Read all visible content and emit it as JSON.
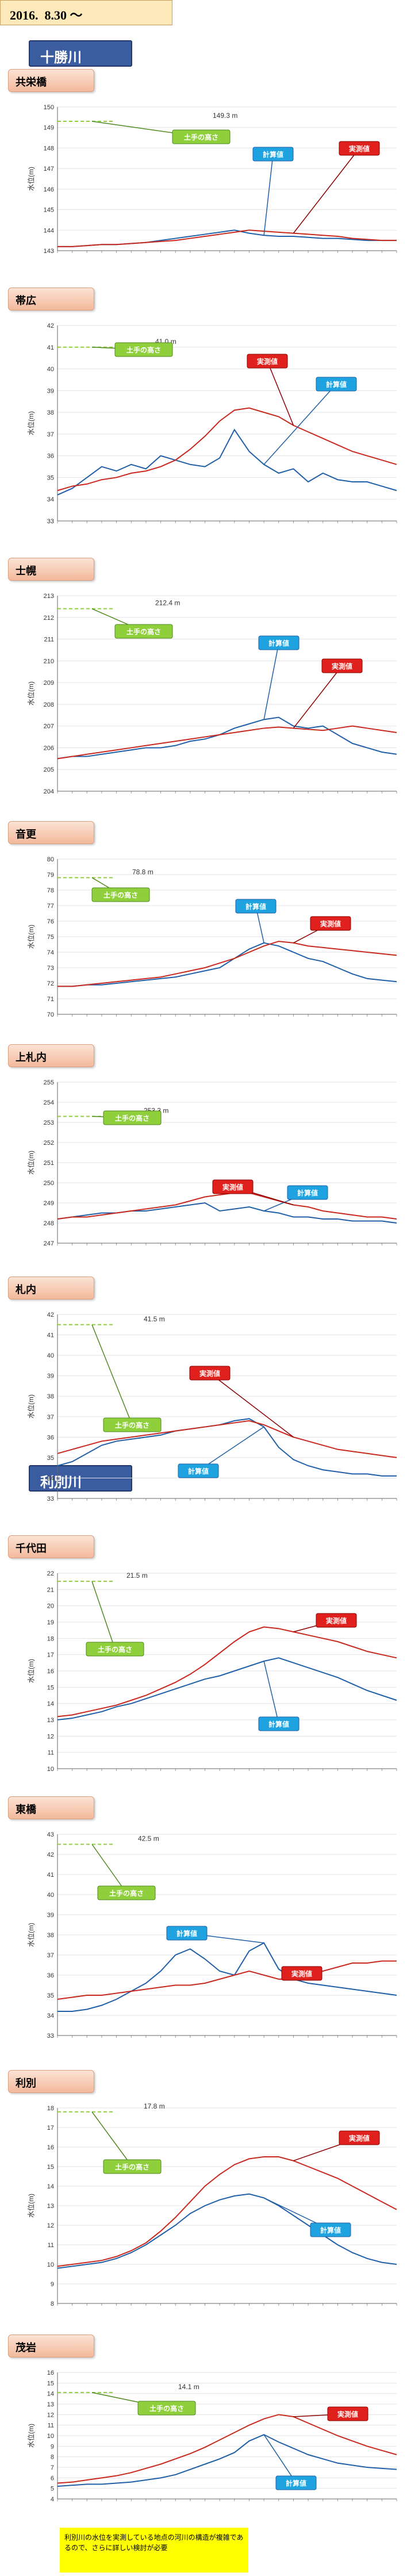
{
  "header": {
    "date": "2016.  8.30 〜"
  },
  "rivers": [
    {
      "name": "十勝川"
    },
    {
      "name": "利別川"
    }
  ],
  "note": "利別川の水位を実測している地点の河川の構造が複雑であるので、さらに詳しい検討が必要",
  "labels": {
    "levee": "土手の高さ",
    "calc": "計算値",
    "obs": "実測値"
  },
  "colors": {
    "calc": "#1f5fa8",
    "obs": "#c8281e",
    "levee": "#8fcf3c",
    "grid": "#e3e3e3"
  },
  "chart_data": [
    {
      "station": "共栄橋",
      "type": "line",
      "ylabel": "水位(m)",
      "ylim": [
        143,
        150
      ],
      "yticks": [
        143,
        144,
        145,
        146,
        147,
        148,
        149,
        150
      ],
      "levee_value": "149.3 m",
      "levee_y": 149.3,
      "series": [
        {
          "name": "計算値",
          "values": [
            143.2,
            143.2,
            143.25,
            143.3,
            143.3,
            143.35,
            143.4,
            143.5,
            143.6,
            143.7,
            143.8,
            143.9,
            144.0,
            143.85,
            143.75,
            143.7,
            143.7,
            143.65,
            143.6,
            143.6,
            143.55,
            143.5,
            143.5,
            143.5
          ]
        },
        {
          "name": "実測値",
          "values": [
            143.2,
            143.2,
            143.25,
            143.3,
            143.3,
            143.35,
            143.4,
            143.45,
            143.5,
            143.6,
            143.7,
            143.8,
            143.9,
            144.0,
            143.95,
            143.9,
            143.85,
            143.8,
            143.75,
            143.7,
            143.6,
            143.55,
            143.5,
            143.5
          ]
        }
      ]
    },
    {
      "station": "帯広",
      "type": "line",
      "ylabel": "水位(m)",
      "ylim": [
        33,
        42
      ],
      "yticks": [
        33,
        34,
        35,
        36,
        37,
        38,
        39,
        40,
        41,
        42
      ],
      "levee_value": "41.0 m",
      "levee_y": 41.0,
      "series": [
        {
          "name": "計算値",
          "values": [
            34.2,
            34.5,
            35.0,
            35.5,
            35.3,
            35.6,
            35.4,
            36.0,
            35.8,
            35.6,
            35.5,
            35.9,
            37.2,
            36.2,
            35.6,
            35.2,
            35.4,
            34.8,
            35.2,
            34.9,
            34.8,
            34.8,
            34.6,
            34.4
          ]
        },
        {
          "name": "実測値",
          "values": [
            34.4,
            34.6,
            34.7,
            34.9,
            35.0,
            35.2,
            35.3,
            35.5,
            35.8,
            36.3,
            36.9,
            37.6,
            38.1,
            38.2,
            38.0,
            37.8,
            37.4,
            37.1,
            36.8,
            36.5,
            36.2,
            36.0,
            35.8,
            35.6
          ]
        }
      ]
    },
    {
      "station": "士幌",
      "type": "line",
      "ylabel": "水位(m)",
      "ylim": [
        204,
        213
      ],
      "yticks": [
        204,
        205,
        206,
        207,
        208,
        209,
        210,
        211,
        212,
        213
      ],
      "levee_value": "212.4 m",
      "levee_y": 212.4,
      "series": [
        {
          "name": "計算値",
          "values": [
            205.5,
            205.6,
            205.6,
            205.7,
            205.8,
            205.9,
            206.0,
            206.0,
            206.1,
            206.3,
            206.4,
            206.6,
            206.9,
            207.1,
            207.3,
            207.4,
            207.0,
            206.9,
            207.0,
            206.6,
            206.2,
            206.0,
            205.8,
            205.7
          ]
        },
        {
          "name": "実測値",
          "values": [
            205.5,
            205.6,
            205.7,
            205.8,
            205.9,
            206.0,
            206.1,
            206.2,
            206.3,
            206.4,
            206.5,
            206.6,
            206.7,
            206.8,
            206.9,
            206.95,
            206.9,
            206.85,
            206.8,
            206.9,
            207.0,
            206.9,
            206.8,
            206.7
          ]
        }
      ]
    },
    {
      "station": "音更",
      "type": "line",
      "ylabel": "水位(m)",
      "ylim": [
        70,
        80
      ],
      "yticks": [
        70,
        71,
        72,
        73,
        74,
        75,
        76,
        77,
        78,
        79,
        80
      ],
      "levee_value": "78.8 m",
      "levee_y": 78.8,
      "series": [
        {
          "name": "計算値",
          "values": [
            71.8,
            71.8,
            71.9,
            71.9,
            72.0,
            72.1,
            72.2,
            72.3,
            72.4,
            72.6,
            72.8,
            73.0,
            73.6,
            74.2,
            74.6,
            74.4,
            74.0,
            73.6,
            73.4,
            73.0,
            72.6,
            72.3,
            72.2,
            72.1
          ]
        },
        {
          "name": "実測値",
          "values": [
            71.8,
            71.8,
            71.9,
            72.0,
            72.1,
            72.2,
            72.3,
            72.4,
            72.6,
            72.8,
            73.0,
            73.3,
            73.6,
            74.0,
            74.4,
            74.7,
            74.6,
            74.4,
            74.3,
            74.2,
            74.1,
            74.0,
            73.9,
            73.8
          ]
        }
      ]
    },
    {
      "station": "上札内",
      "type": "line",
      "ylabel": "水位(m)",
      "ylim": [
        247,
        255
      ],
      "yticks": [
        247,
        248,
        249,
        250,
        251,
        252,
        253,
        254,
        255
      ],
      "levee_value": "253.3 m",
      "levee_y": 253.3,
      "series": [
        {
          "name": "計算値",
          "values": [
            248.2,
            248.3,
            248.4,
            248.5,
            248.5,
            248.6,
            248.6,
            248.7,
            248.8,
            248.9,
            249.0,
            248.6,
            248.7,
            248.8,
            248.6,
            248.5,
            248.3,
            248.3,
            248.2,
            248.2,
            248.1,
            248.1,
            248.1,
            248.0
          ]
        },
        {
          "name": "実測値",
          "values": [
            248.2,
            248.3,
            248.3,
            248.4,
            248.5,
            248.6,
            248.7,
            248.8,
            248.9,
            249.1,
            249.3,
            249.4,
            249.5,
            249.5,
            249.3,
            249.1,
            248.9,
            248.8,
            248.6,
            248.5,
            248.4,
            248.3,
            248.3,
            248.2
          ]
        }
      ]
    },
    {
      "station": "札内",
      "type": "line",
      "ylabel": "水位(m)",
      "ylim": [
        33,
        42
      ],
      "yticks": [
        33,
        34,
        35,
        36,
        37,
        38,
        39,
        40,
        41,
        42
      ],
      "levee_value": "41.5 m",
      "levee_y": 41.5,
      "series": [
        {
          "name": "計算値",
          "values": [
            34.6,
            34.8,
            35.2,
            35.6,
            35.8,
            35.9,
            36.0,
            36.1,
            36.3,
            36.4,
            36.5,
            36.6,
            36.8,
            36.9,
            36.5,
            35.5,
            34.9,
            34.6,
            34.4,
            34.3,
            34.2,
            34.2,
            34.1,
            34.1
          ]
        },
        {
          "name": "実測値",
          "values": [
            35.2,
            35.4,
            35.6,
            35.8,
            35.9,
            36.0,
            36.1,
            36.2,
            36.3,
            36.4,
            36.5,
            36.6,
            36.7,
            36.8,
            36.6,
            36.3,
            36.0,
            35.8,
            35.6,
            35.4,
            35.3,
            35.2,
            35.1,
            35.0
          ]
        }
      ]
    },
    {
      "station": "千代田",
      "type": "line",
      "ylabel": "水位(m)",
      "ylim": [
        10,
        22
      ],
      "yticks": [
        10,
        11,
        12,
        13,
        14,
        15,
        16,
        17,
        18,
        19,
        20,
        21,
        22
      ],
      "levee_value": "21.5 m",
      "levee_y": 21.5,
      "series": [
        {
          "name": "計算値",
          "values": [
            13.0,
            13.1,
            13.3,
            13.5,
            13.8,
            14.0,
            14.3,
            14.6,
            14.9,
            15.2,
            15.5,
            15.7,
            16.0,
            16.3,
            16.6,
            16.8,
            16.5,
            16.2,
            15.9,
            15.6,
            15.2,
            14.8,
            14.5,
            14.2
          ]
        },
        {
          "name": "実測値",
          "values": [
            13.2,
            13.3,
            13.5,
            13.7,
            13.9,
            14.2,
            14.5,
            14.9,
            15.3,
            15.8,
            16.4,
            17.1,
            17.8,
            18.4,
            18.7,
            18.6,
            18.4,
            18.2,
            18.0,
            17.8,
            17.5,
            17.2,
            17.0,
            16.8
          ]
        }
      ]
    },
    {
      "station": "東橋",
      "type": "line",
      "ylabel": "水位(m)",
      "ylim": [
        33,
        43
      ],
      "yticks": [
        33,
        34,
        35,
        36,
        37,
        38,
        39,
        40,
        41,
        42,
        43
      ],
      "levee_value": "42.5 m",
      "levee_y": 42.5,
      "series": [
        {
          "name": "計算値",
          "values": [
            34.2,
            34.2,
            34.3,
            34.5,
            34.8,
            35.2,
            35.6,
            36.2,
            37.0,
            37.3,
            36.8,
            36.2,
            36.0,
            37.2,
            37.6,
            36.3,
            35.8,
            35.6,
            35.5,
            35.4,
            35.3,
            35.2,
            35.1,
            35.0
          ]
        },
        {
          "name": "実測値",
          "values": [
            34.8,
            34.9,
            35.0,
            35.0,
            35.1,
            35.2,
            35.3,
            35.4,
            35.5,
            35.5,
            35.6,
            35.8,
            36.0,
            36.2,
            36.0,
            35.8,
            35.8,
            36.0,
            36.2,
            36.4,
            36.6,
            36.6,
            36.7,
            36.7
          ]
        }
      ]
    },
    {
      "station": "利別",
      "type": "line",
      "ylabel": "水位(m)",
      "ylim": [
        8,
        18
      ],
      "yticks": [
        8,
        9,
        10,
        11,
        12,
        13,
        14,
        15,
        16,
        17,
        18
      ],
      "levee_value": "17.8 m",
      "levee_y": 17.8,
      "series": [
        {
          "name": "計算値",
          "values": [
            9.8,
            9.9,
            10.0,
            10.1,
            10.3,
            10.6,
            11.0,
            11.5,
            12.0,
            12.6,
            13.0,
            13.3,
            13.5,
            13.6,
            13.4,
            13.0,
            12.5,
            12.0,
            11.5,
            11.0,
            10.6,
            10.3,
            10.1,
            10.0
          ]
        },
        {
          "name": "実測値",
          "values": [
            9.9,
            10.0,
            10.1,
            10.2,
            10.4,
            10.7,
            11.1,
            11.7,
            12.4,
            13.2,
            14.0,
            14.6,
            15.1,
            15.4,
            15.5,
            15.5,
            15.3,
            15.0,
            14.7,
            14.4,
            14.0,
            13.6,
            13.2,
            12.8
          ]
        }
      ]
    },
    {
      "station": "茂岩",
      "type": "line",
      "ylabel": "水位(m)",
      "ylim": [
        4,
        16
      ],
      "yticks": [
        4,
        5,
        6,
        7,
        8,
        9,
        10,
        11,
        12,
        13,
        14,
        15,
        16
      ],
      "levee_value": "14.1 m",
      "levee_y": 14.1,
      "series": [
        {
          "name": "計算値",
          "values": [
            5.2,
            5.3,
            5.4,
            5.4,
            5.5,
            5.6,
            5.8,
            6.0,
            6.3,
            6.8,
            7.3,
            7.8,
            8.4,
            9.5,
            10.1,
            9.4,
            8.8,
            8.2,
            7.8,
            7.4,
            7.2,
            7.0,
            6.9,
            6.8
          ]
        },
        {
          "name": "実測値",
          "values": [
            5.5,
            5.6,
            5.8,
            6.0,
            6.2,
            6.5,
            6.9,
            7.3,
            7.8,
            8.3,
            8.9,
            9.6,
            10.3,
            11.0,
            11.6,
            12.0,
            11.8,
            11.2,
            10.6,
            10.0,
            9.5,
            9.0,
            8.6,
            8.2
          ]
        }
      ]
    }
  ]
}
